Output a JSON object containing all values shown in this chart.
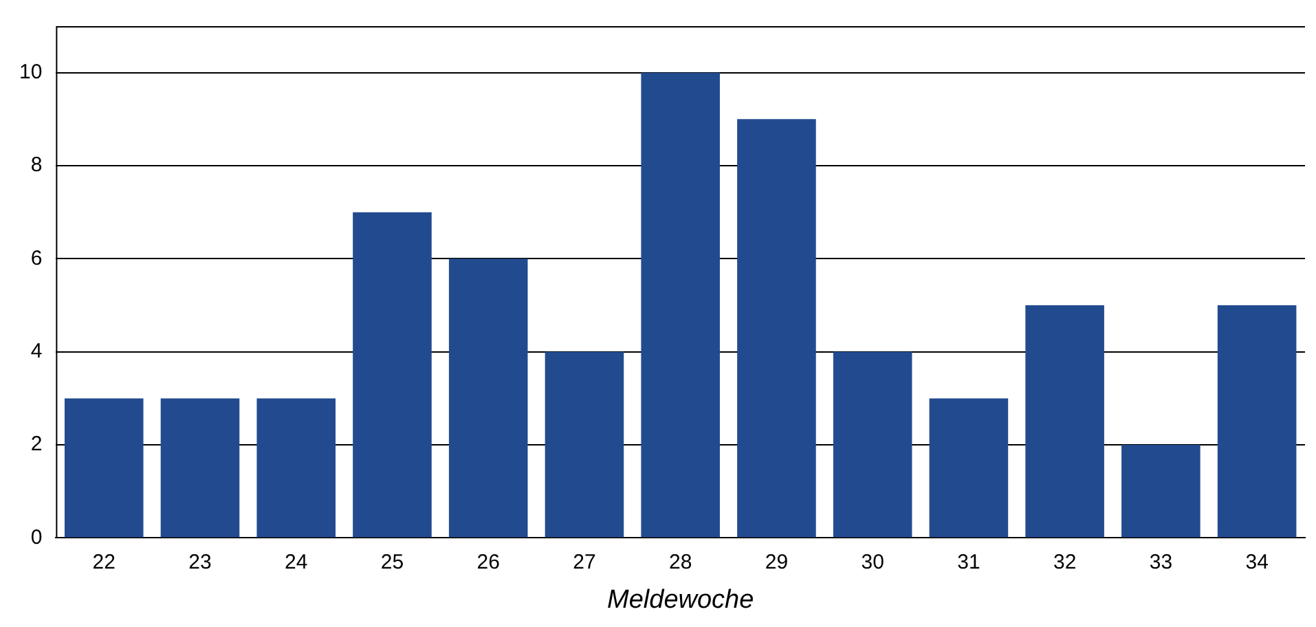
{
  "chart_data": {
    "type": "bar",
    "xlabel": "Meldewoche",
    "categories": [
      "22",
      "23",
      "24",
      "25",
      "26",
      "27",
      "28",
      "29",
      "30",
      "31",
      "32",
      "33",
      "34"
    ],
    "values": [
      3,
      3,
      3,
      7,
      6,
      4,
      10,
      9,
      4,
      3,
      5,
      2,
      5
    ],
    "color": "#224b8f",
    "ylim": [
      0,
      11
    ],
    "yticks": [
      0,
      2,
      4,
      6,
      8,
      10
    ],
    "grid": "y",
    "legend": false
  }
}
